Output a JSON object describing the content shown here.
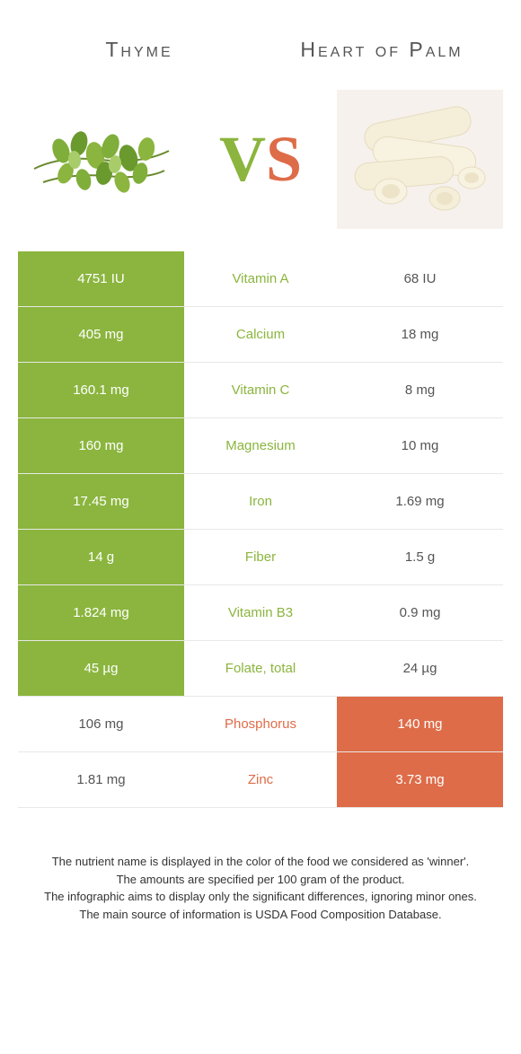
{
  "header": {
    "left_title": "Thyme",
    "right_title": "Heart of Palm",
    "vs_v": "V",
    "vs_s": "S"
  },
  "colors": {
    "green": "#8bb53e",
    "orange": "#de6c48",
    "white": "#ffffff",
    "row_border": "#e8e8e8",
    "text_dark": "#555555"
  },
  "rows": [
    {
      "nutrient": "Vitamin A",
      "left": "4751 IU",
      "right": "68 IU",
      "winner": "left"
    },
    {
      "nutrient": "Calcium",
      "left": "405 mg",
      "right": "18 mg",
      "winner": "left"
    },
    {
      "nutrient": "Vitamin C",
      "left": "160.1 mg",
      "right": "8 mg",
      "winner": "left"
    },
    {
      "nutrient": "Magnesium",
      "left": "160 mg",
      "right": "10 mg",
      "winner": "left"
    },
    {
      "nutrient": "Iron",
      "left": "17.45 mg",
      "right": "1.69 mg",
      "winner": "left"
    },
    {
      "nutrient": "Fiber",
      "left": "14 g",
      "right": "1.5 g",
      "winner": "left"
    },
    {
      "nutrient": "Vitamin B3",
      "left": "1.824 mg",
      "right": "0.9 mg",
      "winner": "left"
    },
    {
      "nutrient": "Folate, total",
      "left": "45 µg",
      "right": "24 µg",
      "winner": "left"
    },
    {
      "nutrient": "Phosphorus",
      "left": "106 mg",
      "right": "140 mg",
      "winner": "right"
    },
    {
      "nutrient": "Zinc",
      "left": "1.81 mg",
      "right": "3.73 mg",
      "winner": "right"
    }
  ],
  "footer": {
    "line1": "The nutrient name is displayed in the color of the food we considered as 'winner'.",
    "line2": "The amounts are specified per 100 gram of the product.",
    "line3": "The infographic aims to display only the significant differences, ignoring minor ones.",
    "line4": "The main source of information is USDA Food Composition Database."
  }
}
